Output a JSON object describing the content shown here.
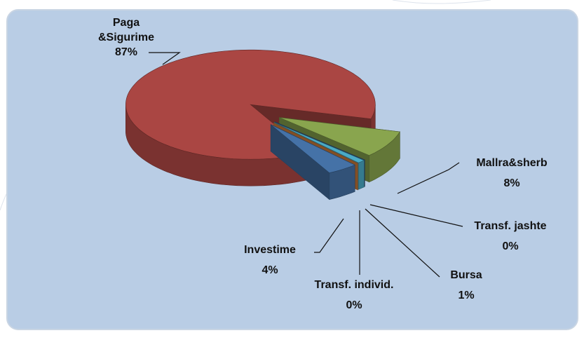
{
  "chart_data": {
    "type": "pie3d",
    "categories": [
      "Paga &Sigurime",
      "Mallra&sherb",
      "Transf. jashte",
      "Bursa",
      "Transf. individ.",
      "Investime"
    ],
    "values": [
      87,
      8,
      0,
      1,
      0,
      4
    ],
    "value_labels": [
      "87%",
      "8%",
      "0%",
      "1%",
      "0%",
      "4%"
    ],
    "colors": [
      "#aa4643",
      "#89a54e",
      "#3d5f8f",
      "#4aaac5",
      "#db843d",
      "#4572a7"
    ]
  }
}
